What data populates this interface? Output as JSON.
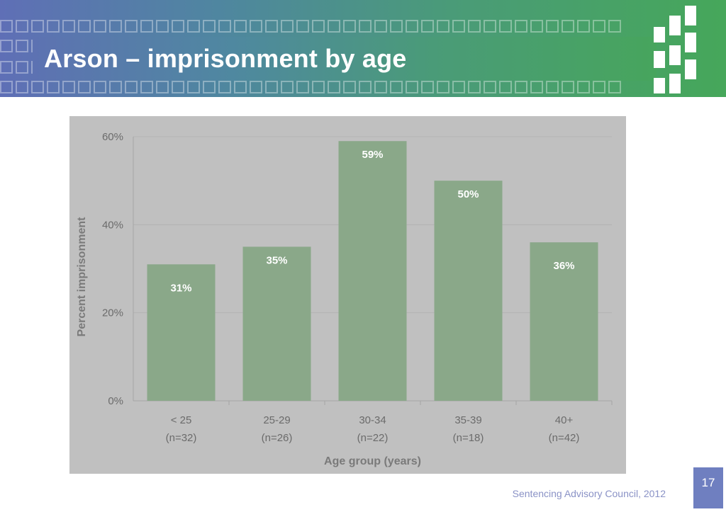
{
  "slide": {
    "title": "Arson – imprisonment by age",
    "page_number": "17",
    "footer": "Sentencing Advisory Council, 2012"
  },
  "colors": {
    "banner_start": "#5f6fb6",
    "banner_end": "#46a75a",
    "chart_background": "#c0c0c0",
    "bar_fill": "#8aa889",
    "page_number_box": "#6f7fc0",
    "footer_text": "#8a92c6"
  },
  "chart_data": {
    "type": "bar",
    "categories": [
      "< 25",
      "25-29",
      "30-34",
      "35-39",
      "40+"
    ],
    "category_sublabels": [
      "(n=32)",
      "(n=26)",
      "(n=22)",
      "(n=18)",
      "(n=42)"
    ],
    "values": [
      31,
      35,
      59,
      50,
      36
    ],
    "data_labels": [
      "31%",
      "35%",
      "59%",
      "50%",
      "36%"
    ],
    "xlabel": "Age group (years)",
    "ylabel": "Percent imprisonment",
    "ylim": [
      0,
      60
    ],
    "yticks": [
      0,
      20,
      40,
      60
    ],
    "ytick_labels": [
      "0%",
      "20%",
      "40%",
      "60%"
    ],
    "grid": true,
    "legend": "none"
  }
}
